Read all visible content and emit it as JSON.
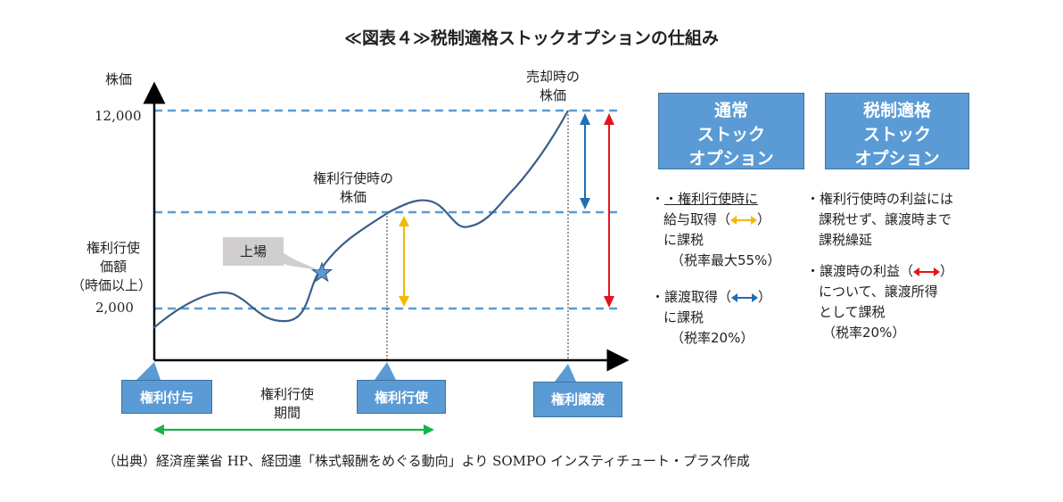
{
  "title": "≪図表４≫税制適格ストックオプションの仕組み",
  "chart": {
    "y_axis_label": "株価",
    "y_tick_high": "12,000",
    "y_tick_low": "2,000",
    "exercise_price_label": [
      "権利行使",
      "価額",
      "（時価以上）"
    ],
    "listing_label": "上場",
    "exercise_time_price_label": [
      "権利行使時の",
      "株価"
    ],
    "sale_time_price_label": [
      "売却時の",
      "株価"
    ],
    "exercise_period_label": [
      "権利行使",
      "期間"
    ],
    "events": {
      "grant": "権利付与",
      "exercise": "権利行使",
      "transfer": "権利譲渡"
    },
    "colors": {
      "line": "#3a5f8a",
      "dash": "#5b9bd5",
      "yellow": "#f5b800",
      "blue": "#1f6fb2",
      "red": "#e3141b",
      "green": "#17b34a"
    }
  },
  "normal_so": {
    "header": [
      "通常",
      "ストック",
      "オプション"
    ],
    "bullets": [
      {
        "lines": [
          "・権利行使時に",
          "給与取得（",
          "）",
          "に課税",
          "（税率最大55%）"
        ]
      },
      {
        "lines": [
          "・譲渡取得（",
          "）",
          "に課税",
          "（税率20%）"
        ]
      }
    ]
  },
  "qualified_so": {
    "header": [
      "税制適格",
      "ストック",
      "オプション"
    ],
    "bullets": [
      {
        "lines": [
          "・権利行使時の利益には",
          "課税せず、譲渡時まで",
          "課税繰延"
        ]
      },
      {
        "lines": [
          "・譲渡時の利益（",
          "）",
          "について、譲渡所得",
          "として課税",
          "（税率20%）"
        ]
      }
    ]
  },
  "source": "（出典）経済産業省 HP、経団連「株式報酬をめぐる動向」より SOMPO インスティチュート・プラス作成"
}
